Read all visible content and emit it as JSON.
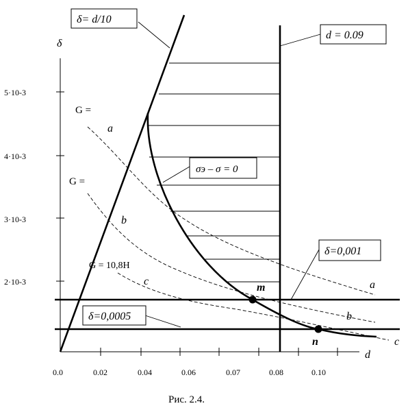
{
  "figure": {
    "caption": "Рис. 2.4.",
    "y_axis_symbol": "δ",
    "x_axis_symbol": "d",
    "x_ticks": [
      "0.0",
      "0.02",
      "0.04",
      "0.06",
      "0.07",
      "0.08",
      "0.10"
    ],
    "y_ticks": [
      "2·10-3",
      "3·10-3",
      "4·10-3",
      "5·10-3"
    ],
    "boxes": {
      "delta_eq": "δ= d/10",
      "d_limit": "d = 0.09",
      "sigma_eq": "σэ – σ = 0",
      "delta_001": "δ=0,001",
      "delta_0005": "δ=0,0005"
    },
    "curve_labels": {
      "G1": "G =",
      "G2": "G =",
      "G3": "G = 10,8Н",
      "a_top": "a",
      "b_top": "b",
      "c_top": "c",
      "a_right": "a",
      "b_right": "b",
      "c_right": "c"
    },
    "points": {
      "m": "m",
      "n": "n"
    }
  }
}
